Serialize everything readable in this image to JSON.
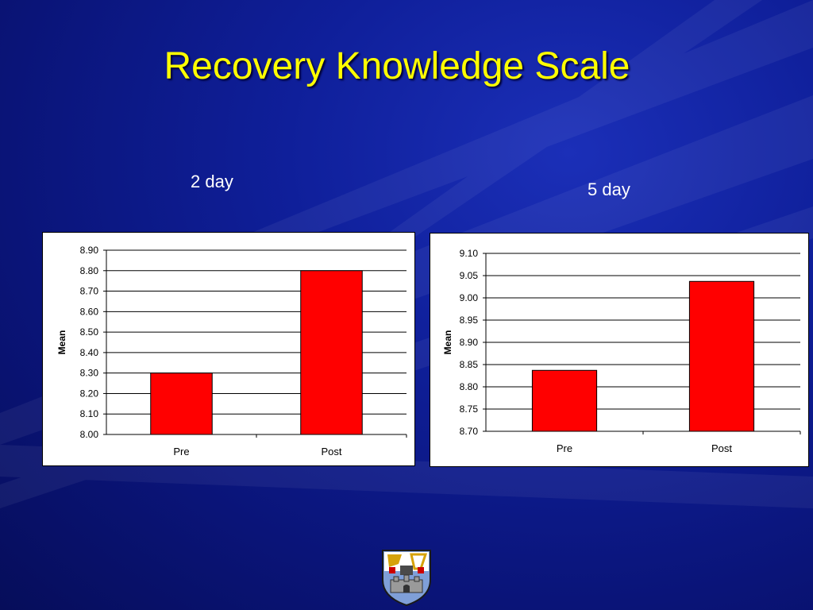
{
  "slide": {
    "title": "Recovery Knowledge Scale",
    "subtitles": [
      "2 day",
      "5 day"
    ]
  },
  "colors": {
    "background": "#0f1f9a",
    "title": "#ffff00",
    "bar_fill": "#ff0000",
    "bar_stroke": "#000000"
  },
  "chart_data": [
    {
      "type": "bar",
      "categories": [
        "Pre",
        "Post"
      ],
      "values": [
        8.3,
        8.8
      ],
      "ylabel": "Mean",
      "ylim": [
        8.0,
        8.9
      ],
      "yticks": [
        "8.00",
        "8.10",
        "8.20",
        "8.30",
        "8.40",
        "8.50",
        "8.60",
        "8.70",
        "8.80",
        "8.90"
      ],
      "grid": true
    },
    {
      "type": "bar",
      "categories": [
        "Pre",
        "Post"
      ],
      "values": [
        8.837,
        9.037
      ],
      "ylabel": "Mean",
      "ylim": [
        8.7,
        9.1
      ],
      "yticks": [
        "8.70",
        "8.75",
        "8.80",
        "8.85",
        "8.90",
        "8.95",
        "9.00",
        "9.05",
        "9.10"
      ],
      "grid": true
    }
  ],
  "logo": {
    "icon": "college-crest-icon"
  }
}
